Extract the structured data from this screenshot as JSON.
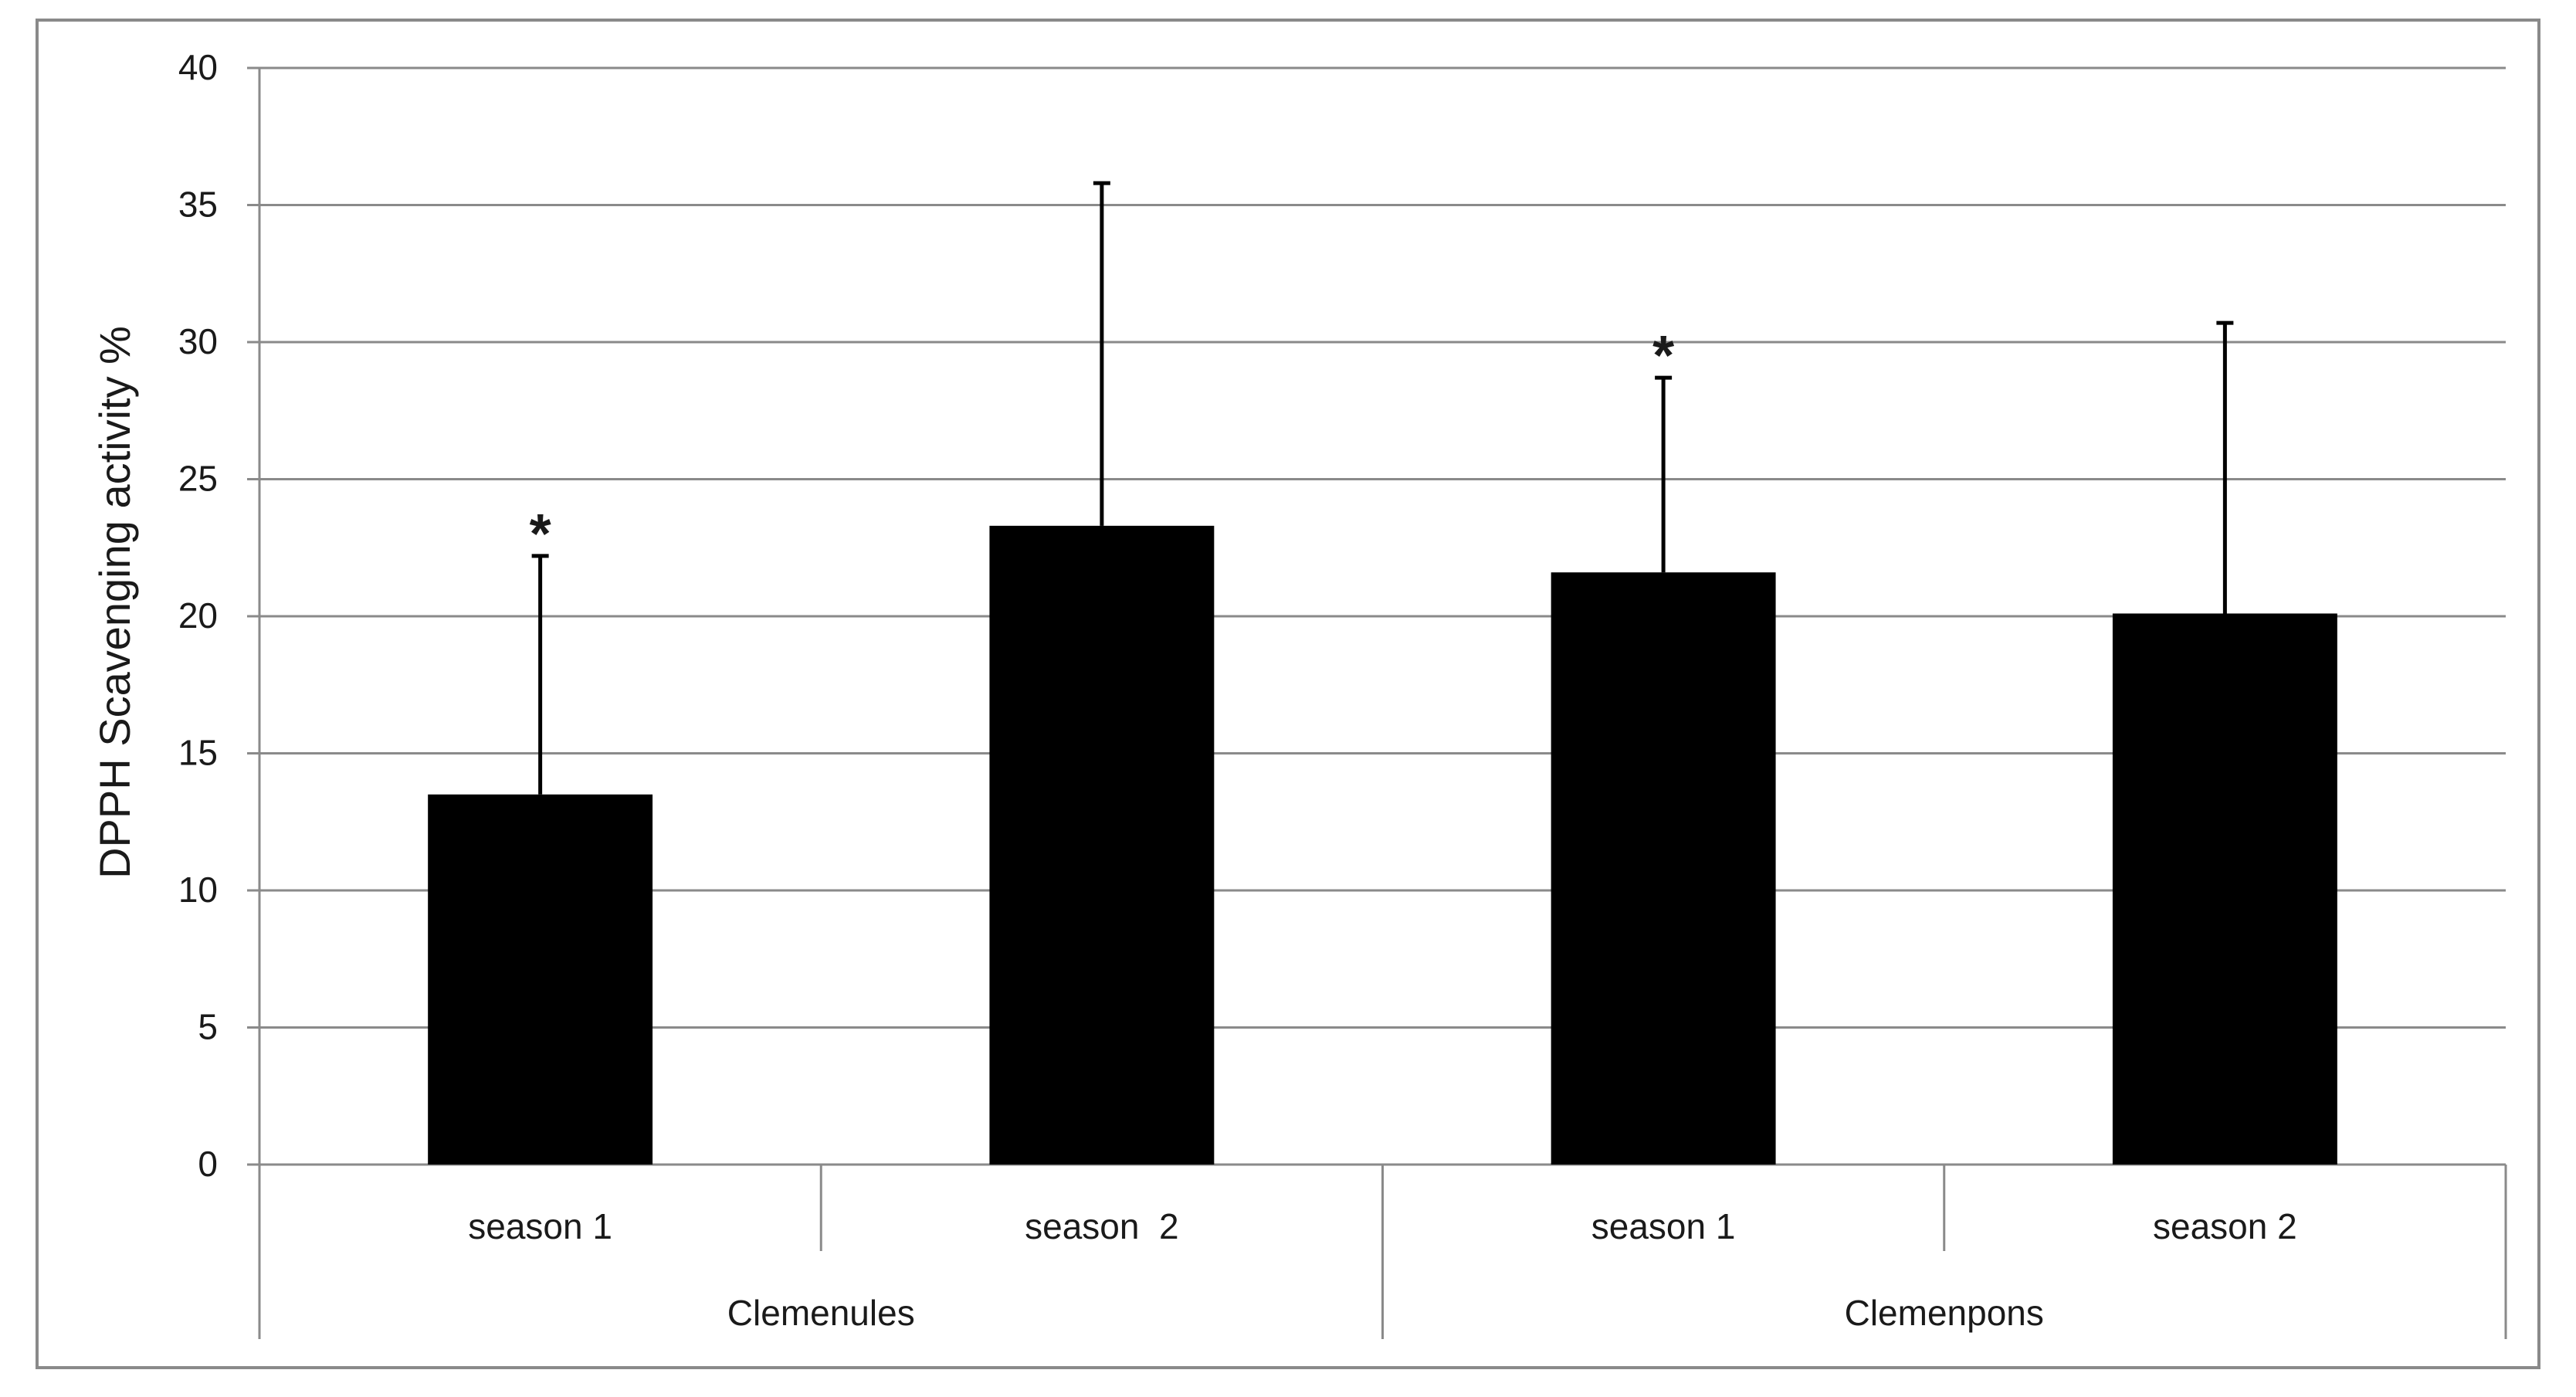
{
  "chart_data": {
    "type": "bar",
    "title": "",
    "ylabel": "DPPH Scavenging activity %",
    "xlabel": "",
    "ylim": [
      0,
      40
    ],
    "yticks": [
      0,
      5,
      10,
      15,
      20,
      25,
      30,
      35,
      40
    ],
    "ytick_labels": [
      "0",
      "5",
      "10",
      "15",
      "20",
      "25",
      "30",
      "35",
      "40"
    ],
    "grid": true,
    "legend": "none",
    "bar_color": "#000000",
    "groups": [
      {
        "label": "Clemenules",
        "categories": [
          "season 1",
          "season  2"
        ]
      },
      {
        "label": "Clemenpons",
        "categories": [
          "season 1",
          "season 2"
        ]
      }
    ],
    "categories": [
      "season 1",
      "season  2",
      "season 1",
      "season 2"
    ],
    "values": [
      13.5,
      23.3,
      21.6,
      20.1
    ],
    "error_upper": [
      22.2,
      35.8,
      28.7,
      30.7
    ],
    "annotations": [
      "*",
      "",
      "*",
      ""
    ]
  }
}
